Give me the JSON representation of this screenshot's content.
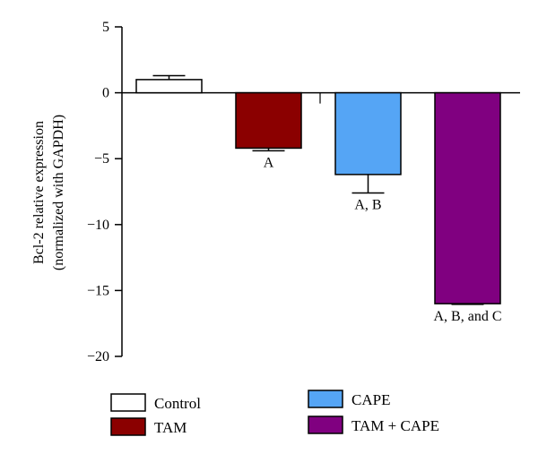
{
  "chart_data": {
    "type": "bar",
    "title": "",
    "ylabel_line1": "Bcl-2 relative expression",
    "ylabel_line2": "(normalized with GAPDH)",
    "ylim": [
      -20,
      5
    ],
    "yticks": [
      5,
      0,
      -5,
      -10,
      -15,
      -20
    ],
    "ytick_labels": [
      "5",
      "0",
      "−5",
      "−10",
      "−15",
      "−20"
    ],
    "grid": false,
    "legend_position": "bottom",
    "series": [
      {
        "name": "Control",
        "value": 1.0,
        "error": 0.3,
        "annotation": "",
        "color": "#ffffff"
      },
      {
        "name": "TAM",
        "value": -4.2,
        "error": 0.2,
        "annotation": "A",
        "color": "#8b0000"
      },
      {
        "name": "CAPE",
        "value": -6.2,
        "error": 1.4,
        "annotation": "A, B",
        "color": "#55a5f5"
      },
      {
        "name": "TAM + CAPE",
        "value": -16.0,
        "error": 0.05,
        "annotation": "A, B, and C",
        "color": "#800080"
      }
    ]
  }
}
